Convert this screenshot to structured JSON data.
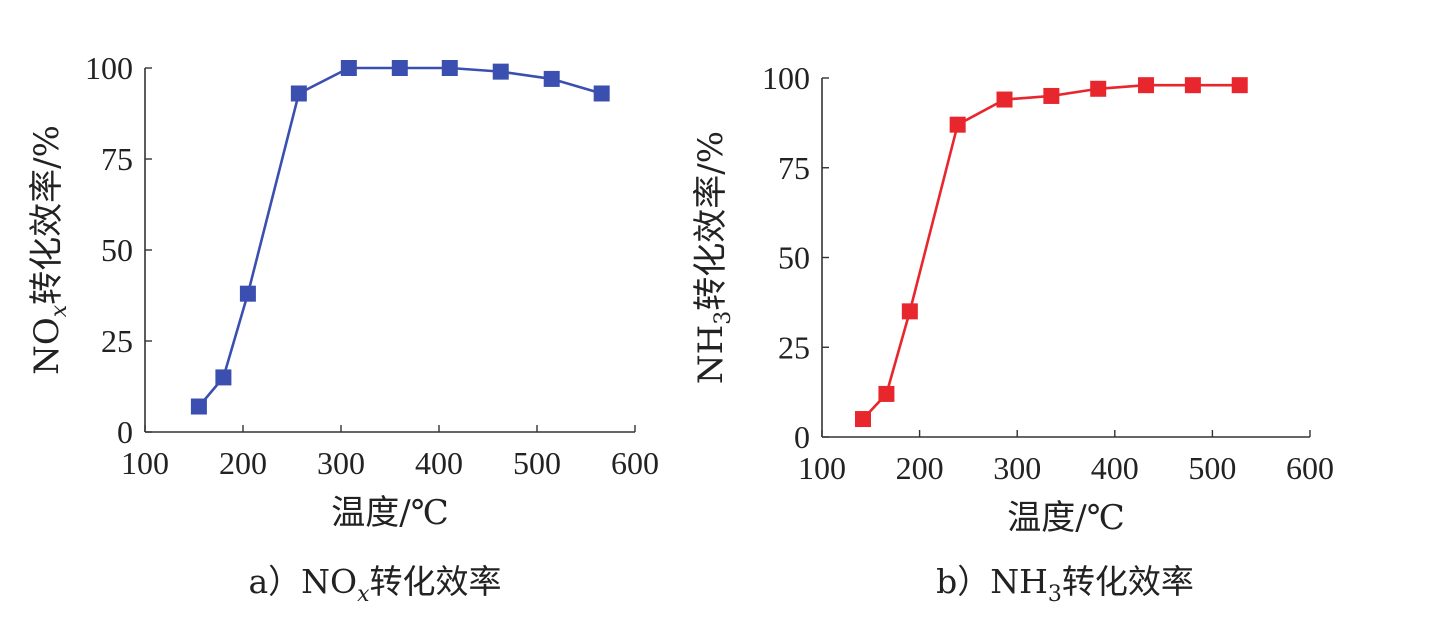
{
  "chart_data": [
    {
      "type": "line",
      "caption_prefix": "a）NO",
      "caption_sub": "x",
      "caption_suffix": "转化效率",
      "ylabel_prefix": "NO",
      "ylabel_sub": "x",
      "ylabel_suffix": "转化效率/%",
      "xlabel": "温度/℃",
      "xlim": [
        100,
        600
      ],
      "ylim": [
        0,
        100
      ],
      "xticks": [
        100,
        200,
        300,
        400,
        500,
        600
      ],
      "yticks": [
        0,
        25,
        50,
        75,
        100
      ],
      "grid": false,
      "color": "#3a4fb0",
      "marker": "square",
      "series": [
        {
          "x": [
            155,
            180,
            205,
            257,
            308,
            360,
            411,
            463,
            515,
            566
          ],
          "y": [
            7,
            15,
            38,
            93,
            100,
            100,
            100,
            99,
            97,
            93
          ]
        }
      ]
    },
    {
      "type": "line",
      "caption_prefix": "b）NH",
      "caption_sub": "3",
      "caption_suffix": "转化效率",
      "ylabel_prefix": "NH",
      "ylabel_sub": "3",
      "ylabel_suffix": "转化效率/%",
      "xlabel": "温度/℃",
      "xlim": [
        100,
        600
      ],
      "ylim": [
        0,
        100
      ],
      "xticks": [
        100,
        200,
        300,
        400,
        500,
        600
      ],
      "yticks": [
        0,
        25,
        50,
        75,
        100
      ],
      "grid": false,
      "color": "#e8262d",
      "marker": "square",
      "series": [
        {
          "x": [
            142,
            166,
            190,
            239,
            287,
            335,
            383,
            432,
            480,
            528
          ],
          "y": [
            5,
            12,
            35,
            87,
            94,
            95,
            97,
            98,
            98,
            98
          ]
        }
      ]
    }
  ]
}
